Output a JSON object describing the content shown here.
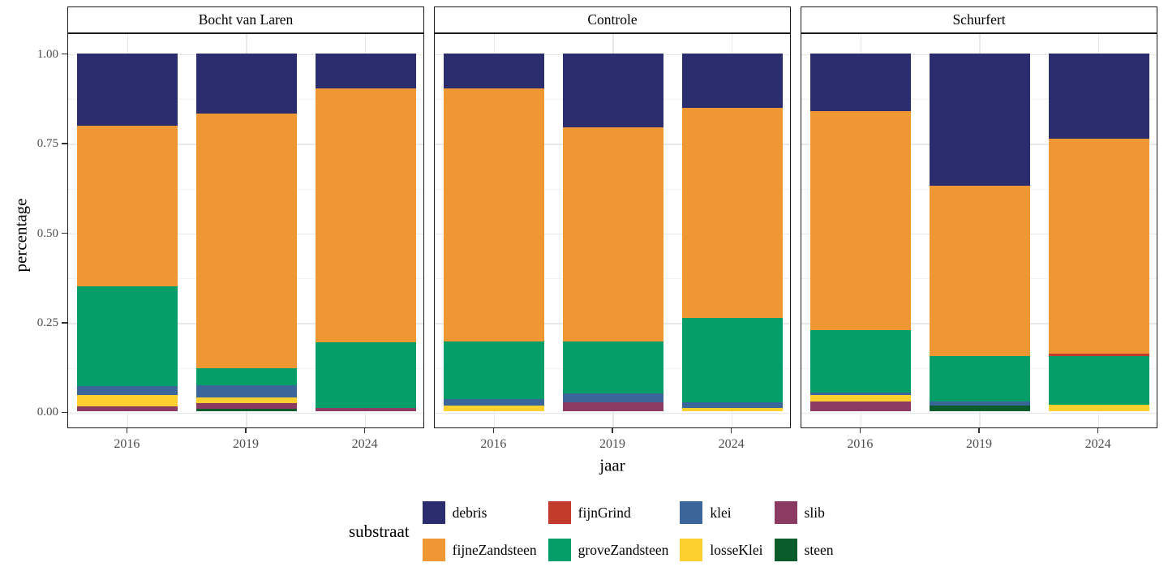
{
  "axes": {
    "y": {
      "title": "percentage",
      "tick_values": [
        0,
        0.25,
        0.5,
        0.75,
        1
      ],
      "tick_labels": [
        "0.00",
        "0.25",
        "0.50",
        "0.75",
        "1.00"
      ]
    },
    "x": {
      "title": "jaar",
      "categories": [
        "2016",
        "2019",
        "2024"
      ]
    }
  },
  "legend": {
    "title": "substraat",
    "items": [
      {
        "label": "debris",
        "color": "#2b2d6f"
      },
      {
        "label": "fijneZandsteen",
        "color": "#ee9733"
      },
      {
        "label": "fijnGrind",
        "color": "#c33c2b"
      },
      {
        "label": "groveZandsteen",
        "color": "#059e69"
      },
      {
        "label": "klei",
        "color": "#3a6699"
      },
      {
        "label": "losseKlei",
        "color": "#fed02f"
      },
      {
        "label": "slib",
        "color": "#8b3a62"
      },
      {
        "label": "steen",
        "color": "#0a5c2b"
      }
    ]
  },
  "chart_data": {
    "type": "bar",
    "stacked": true,
    "title": "",
    "xlabel": "jaar",
    "ylabel": "percentage",
    "ylim": [
      0,
      1
    ],
    "grid": "major+minor",
    "legend_position": "bottom",
    "categories": [
      "2016",
      "2019",
      "2024"
    ],
    "stack_order_bottom_up": [
      "steen",
      "slib",
      "losseKlei",
      "klei",
      "groveZandsteen",
      "fijnGrind",
      "fijneZandsteen",
      "debris"
    ],
    "colors": {
      "debris": "#2b2d6f",
      "fijnGrind": "#c33c2b",
      "fijneZandsteen": "#ee9733",
      "groveZandsteen": "#059e69",
      "klei": "#3a6699",
      "losseKlei": "#fed02f",
      "slib": "#8b3a62",
      "steen": "#0a5c2b"
    },
    "facets": [
      {
        "label": "Bocht van Laren",
        "bars": [
          {
            "x": "2016",
            "values": {
              "slib": 0.014,
              "losseKlei": 0.031,
              "klei": 0.027,
              "groveZandsteen": 0.278,
              "fijneZandsteen": 0.447,
              "debris": 0.203
            }
          },
          {
            "x": "2019",
            "values": {
              "steen": 0.007,
              "slib": 0.016,
              "losseKlei": 0.017,
              "klei": 0.033,
              "groveZandsteen": 0.048,
              "fijneZandsteen": 0.711,
              "debris": 0.168
            }
          },
          {
            "x": "2024",
            "values": {
              "slib": 0.01,
              "groveZandsteen": 0.184,
              "fijneZandsteen": 0.709,
              "debris": 0.097
            }
          }
        ]
      },
      {
        "label": "Controle",
        "bars": [
          {
            "x": "2016",
            "values": {
              "losseKlei": 0.016,
              "klei": 0.018,
              "groveZandsteen": 0.161,
              "fijneZandsteen": 0.707,
              "debris": 0.098
            }
          },
          {
            "x": "2019",
            "values": {
              "slib": 0.026,
              "klei": 0.025,
              "groveZandsteen": 0.144,
              "fijneZandsteen": 0.599,
              "debris": 0.206
            }
          },
          {
            "x": "2024",
            "values": {
              "losseKlei": 0.01,
              "klei": 0.015,
              "groveZandsteen": 0.236,
              "fijneZandsteen": 0.587,
              "debris": 0.152
            }
          }
        ]
      },
      {
        "label": "Schurfert",
        "bars": [
          {
            "x": "2016",
            "values": {
              "slib": 0.028,
              "losseKlei": 0.018,
              "klei": 0.007,
              "groveZandsteen": 0.175,
              "fijneZandsteen": 0.61,
              "debris": 0.162
            }
          },
          {
            "x": "2019",
            "values": {
              "steen": 0.016,
              "klei": 0.011,
              "groveZandsteen": 0.128,
              "fijneZandsteen": 0.476,
              "debris": 0.369
            }
          },
          {
            "x": "2024",
            "values": {
              "losseKlei": 0.019,
              "groveZandsteen": 0.136,
              "fijnGrind": 0.006,
              "fijneZandsteen": 0.6,
              "debris": 0.239
            }
          }
        ]
      }
    ]
  }
}
